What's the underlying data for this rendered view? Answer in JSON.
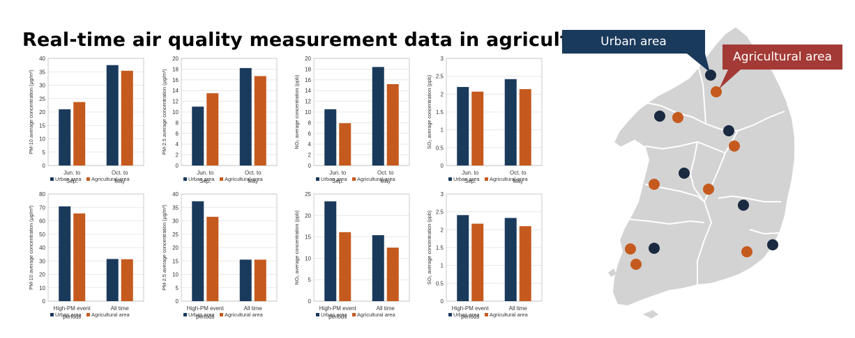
{
  "title": "Real-time air quality measurement data in agricultural sites",
  "colors": {
    "urban": "#1a3a5c",
    "agricultural": "#c55a1e",
    "map_fill": "#d3d3d3",
    "map_border": "#ffffff",
    "urban_callout": "#1a3a5c",
    "agri_callout": "#a33a35"
  },
  "map": {
    "urban_label": "Urban area",
    "agricultural_label": "Agricultural area"
  },
  "chart_data": [
    {
      "type": "bar",
      "ylabel": "PM-10 average concentration (μg/m³)",
      "categories": [
        "Jun. to Sep.",
        "Oct. to May"
      ],
      "ylim": [
        0,
        40
      ],
      "yticks": [
        0,
        5,
        10,
        15,
        20,
        25,
        30,
        35,
        40
      ],
      "series": [
        {
          "name": "Urban area",
          "values": [
            21.0,
            37.5
          ]
        },
        {
          "name": "Agricultural area",
          "values": [
            23.7,
            35.4
          ]
        }
      ]
    },
    {
      "type": "bar",
      "ylabel": "PM-2.5 average concentration (μg/m³)",
      "categories": [
        "Jun. to Sep.",
        "Oct. to May"
      ],
      "ylim": [
        0,
        20
      ],
      "yticks": [
        0,
        2,
        4,
        6,
        8,
        10,
        12,
        14,
        16,
        18,
        20
      ],
      "series": [
        {
          "name": "Urban area",
          "values": [
            11.0,
            18.2
          ]
        },
        {
          "name": "Agricultural area",
          "values": [
            13.5,
            16.7
          ]
        }
      ]
    },
    {
      "type": "bar",
      "ylabel": "NO₂ average concentration (ppb)",
      "categories": [
        "Jun. to Sep.",
        "Oct. to May"
      ],
      "ylim": [
        0,
        20
      ],
      "yticks": [
        0,
        2,
        4,
        6,
        8,
        10,
        12,
        14,
        16,
        18,
        20
      ],
      "series": [
        {
          "name": "Urban area",
          "values": [
            10.5,
            18.4
          ]
        },
        {
          "name": "Agricultural area",
          "values": [
            7.9,
            15.2
          ]
        }
      ]
    },
    {
      "type": "bar",
      "ylabel": "SO₂ average concentration (ppb)",
      "categories": [
        "Jun. to Sep.",
        "Oct. to May"
      ],
      "ylim": [
        0,
        3
      ],
      "yticks": [
        0,
        0.5,
        1,
        1.5,
        2,
        2.5,
        3
      ],
      "series": [
        {
          "name": "Urban area",
          "values": [
            2.2,
            2.42
          ]
        },
        {
          "name": "Agricultural area",
          "values": [
            2.07,
            2.14
          ]
        }
      ]
    },
    {
      "type": "bar",
      "ylabel": "PM-10 average concentration (μg/m³)",
      "categories": [
        "High-PM event periods",
        "All time"
      ],
      "ylim": [
        0,
        80
      ],
      "yticks": [
        0,
        10,
        20,
        30,
        40,
        50,
        60,
        70,
        80
      ],
      "series": [
        {
          "name": "Urban area",
          "values": [
            70.8,
            31.5
          ]
        },
        {
          "name": "Agricultural area",
          "values": [
            65.5,
            31.3
          ]
        }
      ]
    },
    {
      "type": "bar",
      "ylabel": "PM-2.5 average concentration (μg/m³)",
      "categories": [
        "High-PM event periods",
        "All time"
      ],
      "ylim": [
        0,
        40
      ],
      "yticks": [
        0,
        5,
        10,
        15,
        20,
        25,
        30,
        35,
        40
      ],
      "series": [
        {
          "name": "Urban area",
          "values": [
            37.3,
            15.5
          ]
        },
        {
          "name": "Agricultural area",
          "values": [
            31.5,
            15.5
          ]
        }
      ]
    },
    {
      "type": "bar",
      "ylabel": "NO₂ average concentration (ppb)",
      "categories": [
        "High-PM event periods",
        "All time"
      ],
      "ylim": [
        0,
        25
      ],
      "yticks": [
        0,
        5,
        10,
        15,
        20,
        25
      ],
      "series": [
        {
          "name": "Urban area",
          "values": [
            23.3,
            15.4
          ]
        },
        {
          "name": "Agricultural area",
          "values": [
            16.1,
            12.5
          ]
        }
      ]
    },
    {
      "type": "bar",
      "ylabel": "SO₂ average concentration (ppb)",
      "categories": [
        "High-PM event periods",
        "All time"
      ],
      "ylim": [
        0,
        3
      ],
      "yticks": [
        0,
        0.5,
        1,
        1.5,
        2,
        2.5,
        3
      ],
      "series": [
        {
          "name": "Urban area",
          "values": [
            2.41,
            2.33
          ]
        },
        {
          "name": "Agricultural area",
          "values": [
            2.17,
            2.1
          ]
        }
      ]
    }
  ]
}
